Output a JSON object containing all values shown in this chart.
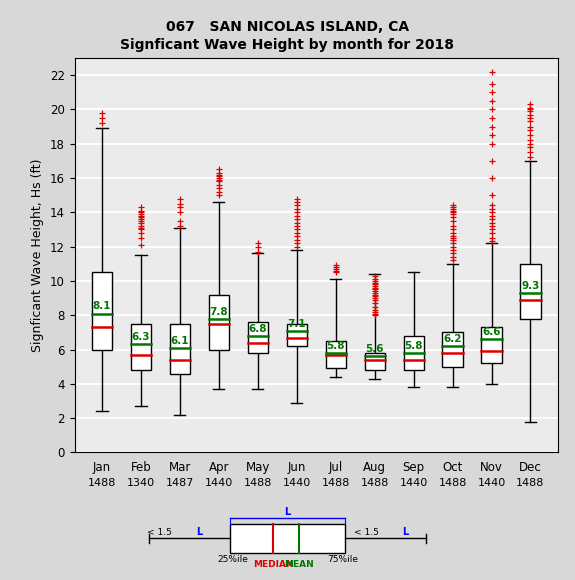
{
  "title1": "067   SAN NICOLAS ISLAND, CA",
  "title2": "Signficant Wave Height by month for 2018",
  "ylabel": "Signficant Wave Height, Hs (ft)",
  "months": [
    "Jan",
    "Feb",
    "Mar",
    "Apr",
    "May",
    "Jun",
    "Jul",
    "Aug",
    "Sep",
    "Oct",
    "Nov",
    "Dec"
  ],
  "counts": [
    "1488",
    "1340",
    "1487",
    "1440",
    "1488",
    "1440",
    "1488",
    "1488",
    "1440",
    "1488",
    "1440",
    "1488"
  ],
  "means": [
    8.1,
    6.3,
    6.1,
    7.8,
    6.8,
    7.1,
    5.8,
    5.6,
    5.8,
    6.2,
    6.6,
    9.3
  ],
  "medians": [
    7.3,
    5.7,
    5.4,
    7.5,
    6.4,
    6.7,
    5.7,
    5.4,
    5.4,
    5.8,
    5.9,
    8.9
  ],
  "q1": [
    6.0,
    4.8,
    4.6,
    6.0,
    5.8,
    6.2,
    4.9,
    4.8,
    4.8,
    5.0,
    5.2,
    7.8
  ],
  "q3": [
    10.5,
    7.5,
    7.5,
    9.2,
    7.6,
    7.5,
    6.5,
    5.8,
    6.8,
    7.0,
    7.3,
    11.0
  ],
  "whisker_low": [
    2.4,
    2.7,
    2.2,
    3.7,
    3.7,
    2.9,
    4.4,
    4.3,
    3.8,
    3.8,
    4.0,
    1.8
  ],
  "whisker_high": [
    18.9,
    11.5,
    13.1,
    14.6,
    11.6,
    11.8,
    10.1,
    10.4,
    10.5,
    11.0,
    12.2,
    17.0
  ],
  "outliers_y": [
    [
      19.5,
      19.2,
      19.8
    ],
    [
      12.1,
      12.5,
      12.8,
      13.0,
      13.1,
      13.2,
      13.4,
      13.5,
      13.6,
      13.7,
      13.8,
      13.9,
      14.0,
      14.1,
      14.3
    ],
    [
      13.2,
      13.5,
      14.0,
      14.3,
      14.5,
      14.8
    ],
    [
      15.0,
      15.2,
      15.4,
      15.6,
      15.8,
      15.9,
      16.0,
      16.1,
      16.2,
      16.3,
      16.5
    ],
    [
      11.7,
      12.0,
      12.2
    ],
    [
      12.0,
      12.2,
      12.4,
      12.6,
      12.8,
      13.0,
      13.2,
      13.4,
      13.6,
      13.8,
      14.0,
      14.2,
      14.4,
      14.6,
      14.8
    ],
    [
      10.5,
      10.6,
      10.7,
      10.8,
      10.9
    ],
    [
      8.0,
      8.1,
      8.2,
      8.3,
      8.5,
      8.7,
      8.9,
      9.0,
      9.1,
      9.2,
      9.3,
      9.4,
      9.5,
      9.6,
      9.7,
      9.8,
      9.9,
      10.0,
      10.1,
      10.3
    ],
    [],
    [
      11.2,
      11.4,
      11.6,
      11.8,
      12.0,
      12.2,
      12.4,
      12.5,
      12.6,
      12.8,
      13.0,
      13.2,
      13.5,
      13.7,
      13.9,
      14.0,
      14.1,
      14.2,
      14.3,
      14.4
    ],
    [
      12.3,
      12.5,
      12.8,
      13.0,
      13.2,
      13.4,
      13.6,
      13.8,
      14.0,
      14.2,
      14.4,
      15.0,
      16.0,
      17.0,
      18.0,
      18.5,
      19.0,
      19.5,
      20.0,
      20.5,
      21.0,
      21.5,
      22.2
    ],
    [
      17.2,
      17.5,
      17.8,
      18.0,
      18.2,
      18.5,
      18.8,
      19.0,
      19.3,
      19.5,
      19.7,
      19.9,
      20.0,
      20.1,
      20.3
    ]
  ],
  "ylim": [
    0,
    23
  ],
  "yticks": [
    0,
    2,
    4,
    6,
    8,
    10,
    12,
    14,
    16,
    18,
    20,
    22
  ],
  "box_color": "white",
  "median_color": "#dd0000",
  "mean_color": "#007700",
  "whisker_color": "black",
  "outlier_color": "#dd0000",
  "bg_color": "#d8d8d8",
  "plot_bg_color": "#ebebeb",
  "box_width": 0.52
}
